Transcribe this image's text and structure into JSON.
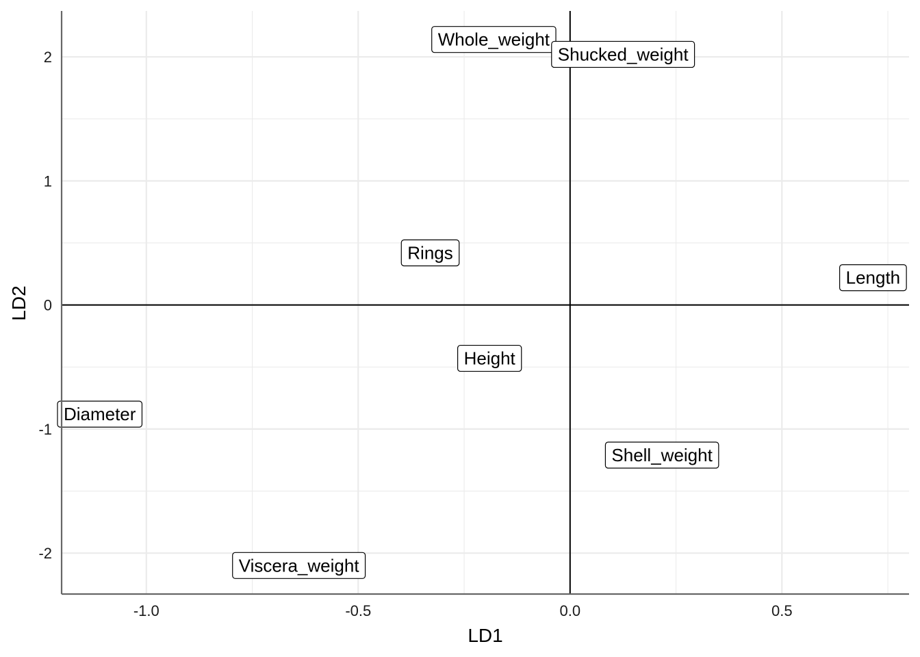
{
  "chart_data": {
    "type": "scatter",
    "xlabel": "LD1",
    "ylabel": "LD2",
    "xlim": [
      -1.2,
      0.8
    ],
    "ylim": [
      -2.33,
      2.37
    ],
    "x_ticks": [
      {
        "value": -1.0,
        "label": "-1.0"
      },
      {
        "value": -0.5,
        "label": "-0.5"
      },
      {
        "value": 0.0,
        "label": "0.0"
      },
      {
        "value": 0.5,
        "label": "0.5"
      }
    ],
    "y_ticks": [
      {
        "value": -2,
        "label": "-2"
      },
      {
        "value": -1,
        "label": "-1"
      },
      {
        "value": 0,
        "label": "0"
      },
      {
        "value": 1,
        "label": "1"
      },
      {
        "value": 2,
        "label": "2"
      }
    ],
    "x_minor": [
      -0.75,
      -0.25,
      0.25,
      0.75
    ],
    "y_minor": [
      -1.5,
      -0.5,
      0.5,
      1.5
    ],
    "grid": true,
    "reference_lines": {
      "x": 0,
      "y": 0
    },
    "points": [
      {
        "label": "Whole_weight",
        "x": -0.18,
        "y": 2.14
      },
      {
        "label": "Shucked_weight",
        "x": 0.125,
        "y": 2.02
      },
      {
        "label": "Rings",
        "x": -0.33,
        "y": 0.42
      },
      {
        "label": "Length",
        "x": 0.715,
        "y": 0.22
      },
      {
        "label": "Height",
        "x": -0.19,
        "y": -0.43
      },
      {
        "label": "Diameter",
        "x": -1.11,
        "y": -0.88
      },
      {
        "label": "Shell_weight",
        "x": 0.217,
        "y": -1.21
      },
      {
        "label": "Viscera_weight",
        "x": -0.64,
        "y": -2.1
      }
    ]
  }
}
